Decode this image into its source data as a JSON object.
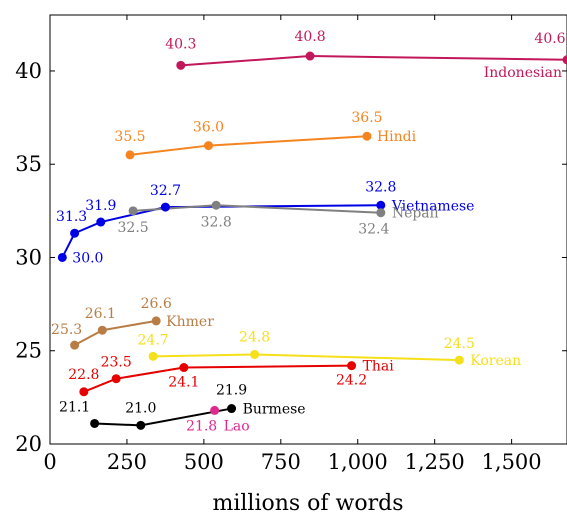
{
  "chart_data": {
    "type": "line",
    "title": "",
    "xlabel": "millions of words",
    "ylabel": "",
    "xlim": [
      0,
      1680
    ],
    "ylim": [
      20,
      43
    ],
    "x_ticks": [
      0,
      250,
      500,
      750,
      1000,
      1250,
      1500
    ],
    "x_tick_labels": [
      "0",
      "250",
      "500",
      "750",
      "1,000",
      "1,250",
      "1,500"
    ],
    "y_ticks": [
      20,
      25,
      30,
      35,
      40
    ],
    "y_tick_labels": [
      "20",
      "25",
      "30",
      "35",
      "40"
    ],
    "grid": false,
    "legend": "none",
    "series": [
      {
        "name": "Indonesian",
        "color": "#c2185b",
        "points": [
          {
            "x": 425,
            "y": 40.3,
            "label": "40.3"
          },
          {
            "x": 845,
            "y": 40.8,
            "label": "40.8"
          },
          {
            "x": 1680,
            "y": 40.6,
            "label": "40.6"
          }
        ]
      },
      {
        "name": "Hindi",
        "color": "#f5841f",
        "points": [
          {
            "x": 260,
            "y": 35.5,
            "label": "35.5"
          },
          {
            "x": 515,
            "y": 36.0,
            "label": "36.0"
          },
          {
            "x": 1030,
            "y": 36.5,
            "label": "36.5"
          }
        ]
      },
      {
        "name": "Vietnamese",
        "color": "#0000e6",
        "points": [
          {
            "x": 40,
            "y": 30.0,
            "label": "30.0"
          },
          {
            "x": 80,
            "y": 31.3,
            "label": "31.3"
          },
          {
            "x": 165,
            "y": 31.9,
            "label": "31.9"
          },
          {
            "x": 375,
            "y": 32.7,
            "label": "32.7"
          },
          {
            "x": 1075,
            "y": 32.8,
            "label": "32.8"
          }
        ]
      },
      {
        "name": "Nepali",
        "color": "#808080",
        "points": [
          {
            "x": 270,
            "y": 32.5,
            "label": "32.5"
          },
          {
            "x": 540,
            "y": 32.8,
            "label": "32.8"
          },
          {
            "x": 1075,
            "y": 32.4,
            "label": "32.4"
          }
        ]
      },
      {
        "name": "Khmer",
        "color": "#b87d45",
        "points": [
          {
            "x": 80,
            "y": 25.3,
            "label": "25.3"
          },
          {
            "x": 170,
            "y": 26.1,
            "label": "26.1"
          },
          {
            "x": 345,
            "y": 26.6,
            "label": "26.6"
          }
        ]
      },
      {
        "name": "Korean",
        "color": "#f5e01a",
        "points": [
          {
            "x": 335,
            "y": 24.7,
            "label": "24.7"
          },
          {
            "x": 665,
            "y": 24.8,
            "label": "24.8"
          },
          {
            "x": 1330,
            "y": 24.5,
            "label": "24.5"
          }
        ]
      },
      {
        "name": "Thai",
        "color": "#e60000",
        "points": [
          {
            "x": 110,
            "y": 22.8,
            "label": "22.8"
          },
          {
            "x": 215,
            "y": 23.5,
            "label": "23.5"
          },
          {
            "x": 435,
            "y": 24.1,
            "label": "24.1"
          },
          {
            "x": 980,
            "y": 24.2,
            "label": "24.2"
          }
        ]
      },
      {
        "name": "Burmese",
        "color": "#000000",
        "points": [
          {
            "x": 145,
            "y": 21.1,
            "label": "21.1"
          },
          {
            "x": 295,
            "y": 21.0,
            "label": "21.0"
          },
          {
            "x": 590,
            "y": 21.9,
            "label": "21.9"
          }
        ]
      },
      {
        "name": "Lao",
        "color": "#e0298f",
        "points": [
          {
            "x": 535,
            "y": 21.8,
            "label": "21.8"
          }
        ]
      }
    ]
  }
}
